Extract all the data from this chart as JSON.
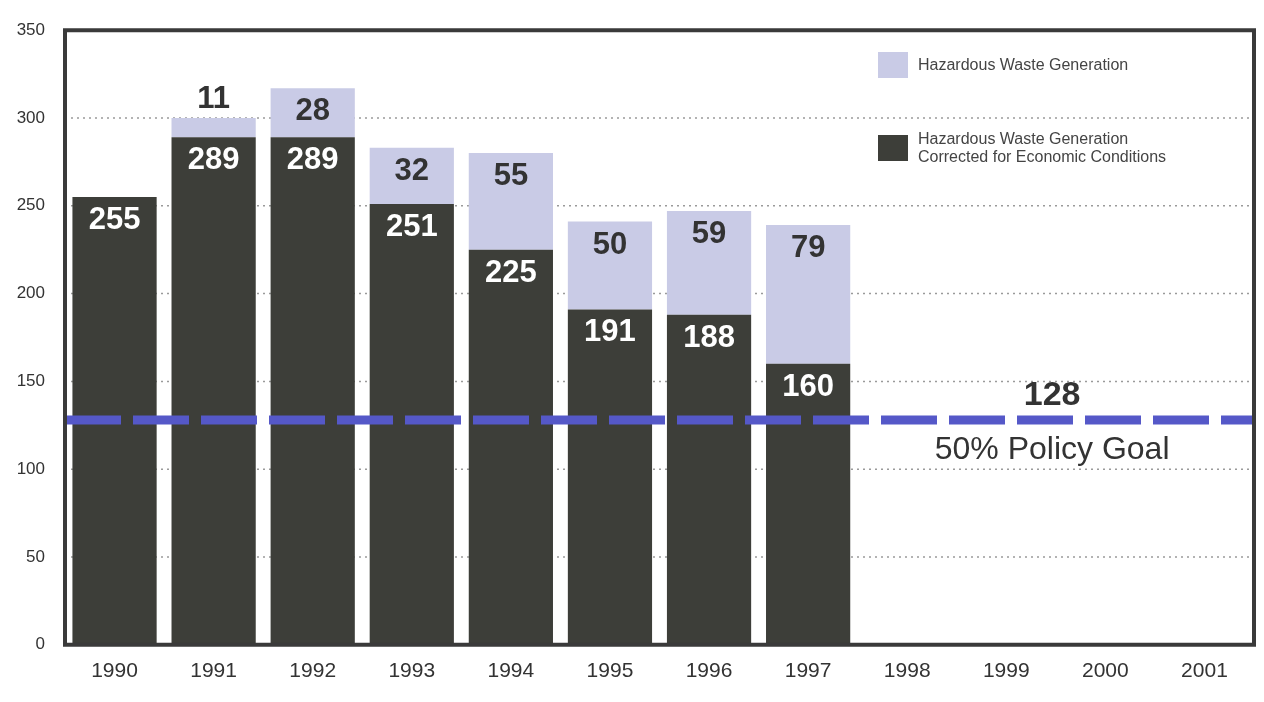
{
  "chart_data": {
    "type": "bar",
    "stacked": true,
    "categories": [
      "1990",
      "1991",
      "1992",
      "1993",
      "1994",
      "1995",
      "1996",
      "1997",
      "1998",
      "1999",
      "2000",
      "2001"
    ],
    "series": [
      {
        "name": "Hazardous Waste Generation Corrected for Economic Conditions",
        "color": "#3d3e39",
        "values": [
          255,
          289,
          289,
          251,
          225,
          191,
          188,
          160,
          null,
          null,
          null,
          null
        ]
      },
      {
        "name": "Hazardous Waste Generation",
        "color": "#c9cbe6",
        "values": [
          null,
          11,
          28,
          32,
          55,
          50,
          59,
          79,
          null,
          null,
          null,
          null
        ]
      }
    ],
    "ylim": [
      0,
      350
    ],
    "yticks": [
      0,
      50,
      100,
      150,
      200,
      250,
      300,
      350
    ],
    "grid": "y",
    "legend": "top right",
    "data_labels": true,
    "ref_lines": [
      {
        "axis": "y",
        "value": 128,
        "label": "50% Policy Goal",
        "color": "#5558c8",
        "line_style": "dashed"
      }
    ],
    "annotations": [
      {
        "text": "128",
        "y": 128
      }
    ]
  }
}
